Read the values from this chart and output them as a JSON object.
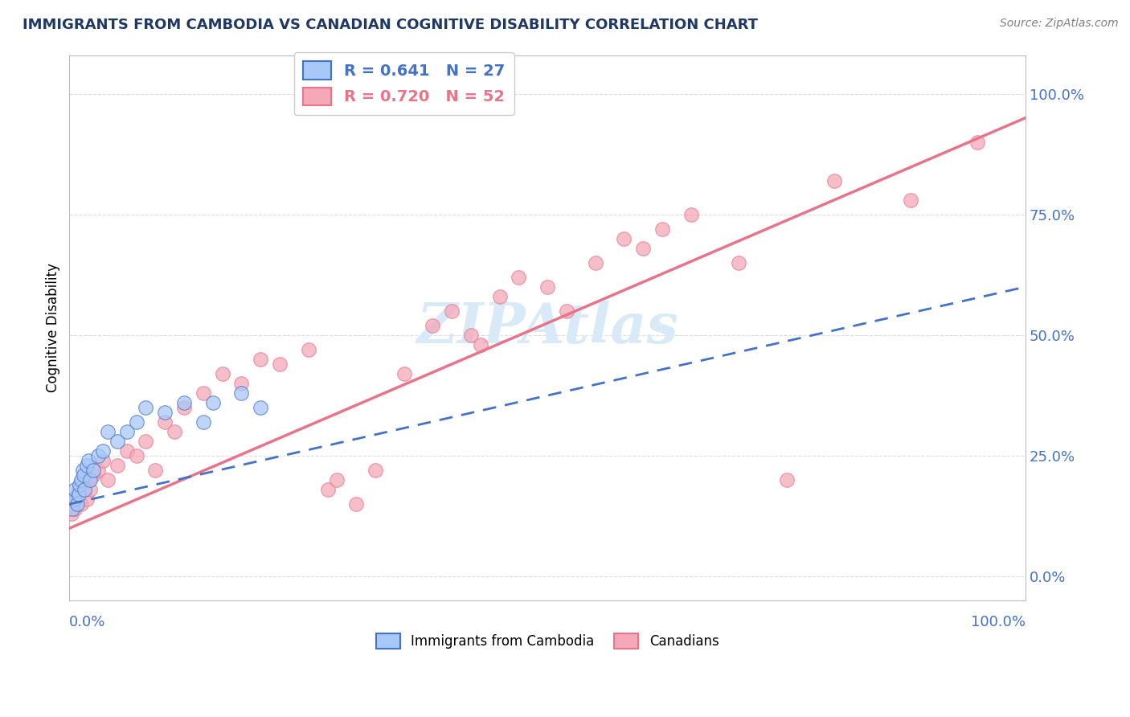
{
  "title": "IMMIGRANTS FROM CAMBODIA VS CANADIAN COGNITIVE DISABILITY CORRELATION CHART",
  "source": "Source: ZipAtlas.com",
  "ylabel": "Cognitive Disability",
  "ytick_values": [
    0,
    25,
    50,
    75,
    100
  ],
  "xlim": [
    0,
    100
  ],
  "ylim": [
    -5,
    108
  ],
  "legend_blue_r": "0.641",
  "legend_blue_n": "27",
  "legend_pink_r": "0.720",
  "legend_pink_n": "52",
  "legend_label_blue": "Immigrants from Cambodia",
  "legend_label_pink": "Canadians",
  "watermark": "ZIPAtlas",
  "blue_scatter_x": [
    0.3,
    0.5,
    0.6,
    0.8,
    1.0,
    1.1,
    1.2,
    1.4,
    1.5,
    1.6,
    1.8,
    2.0,
    2.2,
    2.5,
    3.0,
    3.5,
    4.0,
    5.0,
    6.0,
    7.0,
    8.0,
    10.0,
    12.0,
    14.0,
    15.0,
    18.0,
    20.0
  ],
  "blue_scatter_y": [
    14,
    16,
    18,
    15,
    17,
    19,
    20,
    22,
    21,
    18,
    23,
    24,
    20,
    22,
    25,
    26,
    30,
    28,
    30,
    32,
    35,
    34,
    36,
    32,
    36,
    38,
    35
  ],
  "pink_scatter_x": [
    0.2,
    0.4,
    0.5,
    0.6,
    0.8,
    1.0,
    1.2,
    1.5,
    1.8,
    2.0,
    2.2,
    2.5,
    3.0,
    3.5,
    4.0,
    5.0,
    6.0,
    7.0,
    8.0,
    9.0,
    10.0,
    11.0,
    12.0,
    14.0,
    16.0,
    18.0,
    20.0,
    22.0,
    25.0,
    27.0,
    28.0,
    30.0,
    32.0,
    35.0,
    38.0,
    40.0,
    42.0,
    43.0,
    45.0,
    47.0,
    50.0,
    52.0,
    55.0,
    58.0,
    60.0,
    62.0,
    65.0,
    70.0,
    75.0,
    80.0,
    88.0,
    95.0
  ],
  "pink_scatter_y": [
    13,
    15,
    16,
    14,
    17,
    18,
    15,
    19,
    16,
    20,
    18,
    21,
    22,
    24,
    20,
    23,
    26,
    25,
    28,
    22,
    32,
    30,
    35,
    38,
    42,
    40,
    45,
    44,
    47,
    18,
    20,
    15,
    22,
    42,
    52,
    55,
    50,
    48,
    58,
    62,
    60,
    55,
    65,
    70,
    68,
    72,
    75,
    65,
    20,
    82,
    78,
    90
  ],
  "blue_line_color": "#4472C4",
  "pink_line_color": "#E8748A",
  "blue_scatter_color": "#A8C8F8",
  "pink_scatter_color": "#F4A8B8",
  "grid_color": "#DDDDDD",
  "background_color": "#FFFFFF",
  "title_color": "#1F3864",
  "axis_label_color": "#4472C4",
  "watermark_color": "#D8EAF8",
  "blue_line_start_x": 0,
  "blue_line_end_x": 100,
  "blue_line_start_y": 15,
  "blue_line_end_y": 60,
  "pink_line_start_x": 0,
  "pink_line_end_x": 100,
  "pink_line_start_y": 10,
  "pink_line_end_y": 95
}
